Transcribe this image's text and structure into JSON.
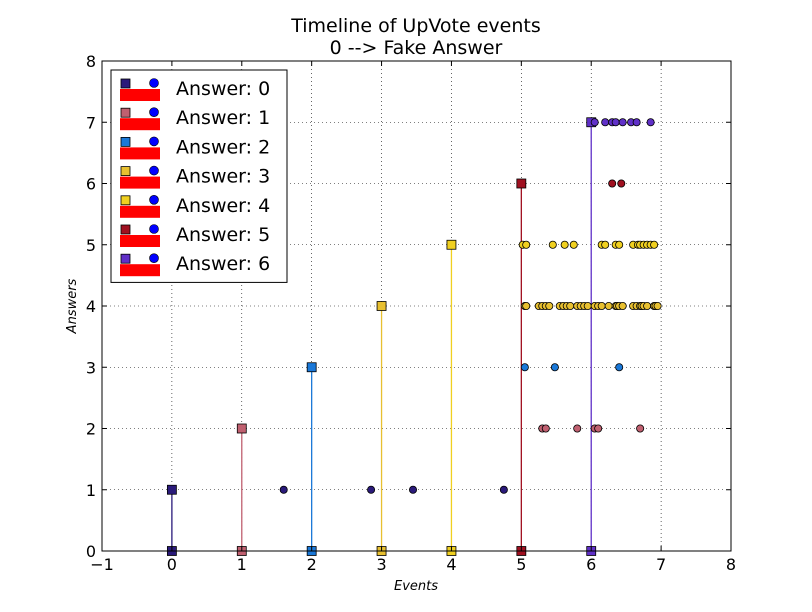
{
  "chart_data": {
    "type": "scatter",
    "title": "Timeline of UpVote events",
    "subtitle": "0 --> Fake Answer",
    "xlabel": "Events",
    "ylabel": "Answers",
    "xlim": [
      -1,
      8
    ],
    "ylim": [
      0,
      8
    ],
    "xticks": [
      -1,
      0,
      1,
      2,
      3,
      4,
      5,
      6,
      7,
      8
    ],
    "yticks": [
      0,
      1,
      2,
      3,
      4,
      5,
      6,
      7,
      8
    ],
    "grid": true,
    "legend_position": "top-left",
    "series": [
      {
        "name": "Answer: 0",
        "color": "#2a1a7a",
        "stem_x": 0,
        "stem_y": 1,
        "events": [
          1.6,
          2.85,
          3.45,
          4.75
        ]
      },
      {
        "name": "Answer: 1",
        "color": "#c06070",
        "stem_x": 1,
        "stem_y": 2,
        "events": [
          5.3,
          5.35,
          5.8,
          6.05,
          6.1,
          6.7
        ]
      },
      {
        "name": "Answer: 2",
        "color": "#1a78d8",
        "stem_x": 2,
        "stem_y": 3,
        "events": [
          5.05,
          5.48,
          6.4
        ]
      },
      {
        "name": "Answer: 3",
        "color": "#e8c030",
        "stem_x": 3,
        "stem_y": 4,
        "events": [
          5.05,
          5.07,
          5.25,
          5.3,
          5.35,
          5.4,
          5.55,
          5.6,
          5.65,
          5.7,
          5.8,
          5.85,
          5.9,
          5.95,
          6.05,
          6.1,
          6.15,
          6.25,
          6.35,
          6.37,
          6.4,
          6.45,
          6.6,
          6.65,
          6.7,
          6.72,
          6.75,
          6.8,
          6.9,
          6.92,
          6.95
        ]
      },
      {
        "name": "Answer: 4",
        "color": "#f0d020",
        "stem_x": 4,
        "stem_y": 5,
        "events": [
          5.02,
          5.07,
          5.45,
          5.62,
          5.75,
          6.15,
          6.2,
          6.35,
          6.4,
          6.6,
          6.67,
          6.7,
          6.75,
          6.8,
          6.85,
          6.9
        ]
      },
      {
        "name": "Answer: 5",
        "color": "#a01020",
        "stem_x": 5,
        "stem_y": 6,
        "events": [
          6.3,
          6.43
        ]
      },
      {
        "name": "Answer: 6",
        "color": "#6030c8",
        "stem_x": 6,
        "stem_y": 7,
        "events": [
          6.05,
          6.2,
          6.3,
          6.35,
          6.45,
          6.57,
          6.65,
          6.85
        ]
      }
    ]
  }
}
